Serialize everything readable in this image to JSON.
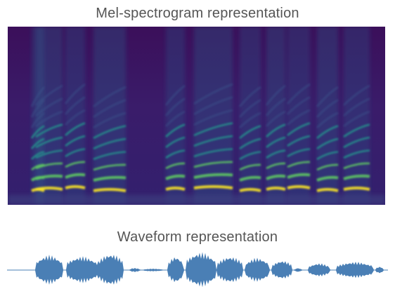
{
  "mel": {
    "title": "Mel-spectrogram representation",
    "colormap": [
      "#440154",
      "#3b528b",
      "#21918c",
      "#5ec962",
      "#fde725"
    ]
  },
  "waveform": {
    "title": "Waveform representation",
    "color": "#4a7fb5"
  }
}
